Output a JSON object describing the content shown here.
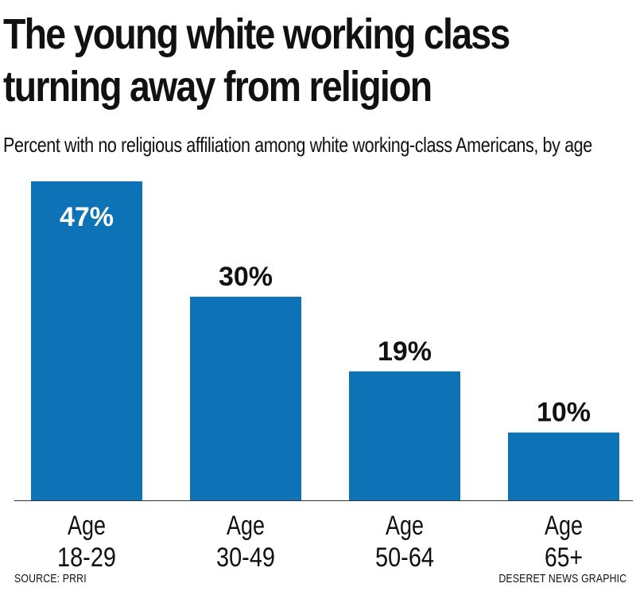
{
  "title_lines": [
    "The young white working class",
    "turning away from religion"
  ],
  "subtitle": "Percent with no religious affiliation among  white working-class Americans, by age",
  "source": "SOURCE: PRRI",
  "credit": "DESERET NEWS GRAPHIC",
  "colors": {
    "bar": "#0d73b6",
    "text": "#111111",
    "label_inside": "#ffffff"
  },
  "chart_data": {
    "type": "bar",
    "categories": [
      [
        "Age",
        "18-29"
      ],
      [
        "Age",
        "30-49"
      ],
      [
        "Age",
        "50-64"
      ],
      [
        "Age",
        "65+"
      ]
    ],
    "values": [
      47,
      30,
      19,
      10
    ],
    "data_labels": [
      "47%",
      "30%",
      "19%",
      "10%"
    ],
    "title": "The young white working class turning away from religion",
    "subtitle": "Percent with no religious affiliation among  white working-class Americans, by age",
    "xlabel": "",
    "ylabel": "",
    "ylim": [
      0,
      47
    ],
    "grid": false,
    "legend": "none"
  }
}
